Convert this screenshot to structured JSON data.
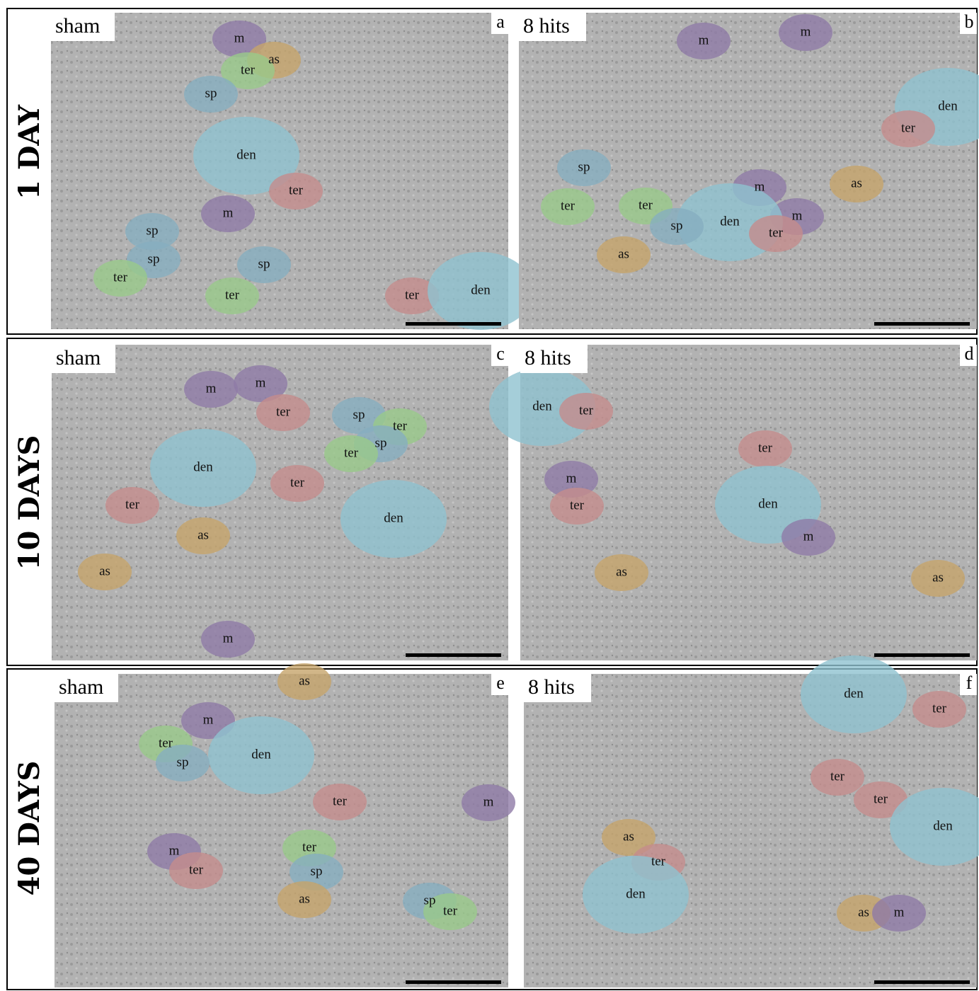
{
  "rows": [
    {
      "label": "1 DAY",
      "panels": [
        {
          "condition": "sham",
          "letter": "a",
          "labels": [
            "m",
            "as",
            "ter",
            "sp",
            "den",
            "ter",
            "m",
            "sp",
            "sp",
            "sp",
            "ter",
            "ter",
            "ter",
            "den"
          ]
        },
        {
          "condition": "8 hits",
          "letter": "b",
          "labels": [
            "m",
            "m",
            "den",
            "ter",
            "sp",
            "as",
            "ter",
            "ter",
            "m",
            "m",
            "den",
            "sp",
            "ter",
            "as"
          ]
        }
      ]
    },
    {
      "label": "10 DAYS",
      "panels": [
        {
          "condition": "sham",
          "letter": "c",
          "labels": [
            "m",
            "m",
            "ter",
            "sp",
            "ter",
            "sp",
            "ter",
            "den",
            "ter",
            "ter",
            "as",
            "den",
            "as",
            "m"
          ]
        },
        {
          "condition": "8 hits",
          "letter": "d",
          "labels": [
            "den",
            "ter",
            "ter",
            "m",
            "ter",
            "den",
            "m",
            "as",
            "as"
          ]
        }
      ]
    },
    {
      "label": "40 DAYS",
      "panels": [
        {
          "condition": "sham",
          "letter": "e",
          "labels": [
            "as",
            "m",
            "den",
            "ter",
            "sp",
            "ter",
            "ter",
            "m",
            "ter",
            "sp",
            "as",
            "sp",
            "ter",
            "m"
          ]
        },
        {
          "condition": "8 hits",
          "letter": "f",
          "labels": [
            "den",
            "ter",
            "ter",
            "ter",
            "den",
            "as",
            "ter",
            "den",
            "as",
            "m"
          ]
        }
      ]
    }
  ]
}
